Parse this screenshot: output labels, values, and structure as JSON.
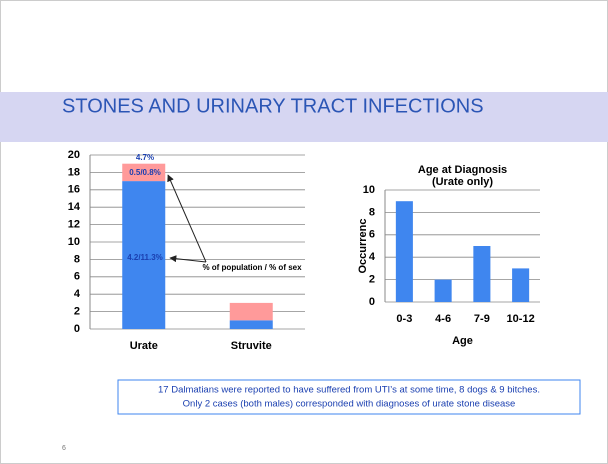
{
  "slide_title": "STONES AND URINARY TRACT INFECTIONS",
  "note": [
    "17 Dalmatians were reported to have suffered from UTI’s at some time, 8 dogs & 9 bitches.",
    "Only 2 cases (both males) corresponded with diagnoses of urate stone disease"
  ],
  "page_number": "6",
  "chart_data": [
    {
      "type": "bar",
      "stacked": true,
      "categories": [
        "Urate",
        "Struvite"
      ],
      "series": [
        {
          "color": "#3f86ef",
          "values": [
            17,
            1
          ]
        },
        {
          "color": "#ff9a9a",
          "values": [
            2,
            2
          ]
        }
      ],
      "ylim": [
        0,
        20
      ],
      "yticks": [
        0,
        2,
        4,
        6,
        8,
        10,
        12,
        14,
        16,
        18,
        20
      ],
      "grid": true,
      "annotations": [
        "4.7%",
        "0.5/0.8%",
        "4.2/11.3%",
        "% of population / % of sex"
      ]
    },
    {
      "type": "bar",
      "title": "Age at Diagnosis",
      "subtitle": "(Urate only)",
      "categories": [
        "0-3",
        "4-6",
        "7-9",
        "10-12"
      ],
      "values": [
        9,
        2,
        5,
        3
      ],
      "color": "#3f86ef",
      "ylim": [
        0,
        10
      ],
      "yticks": [
        0,
        2,
        4,
        6,
        8,
        10
      ],
      "grid": true,
      "ylabel": "Occurrenc",
      "xlabel": "Age"
    }
  ]
}
